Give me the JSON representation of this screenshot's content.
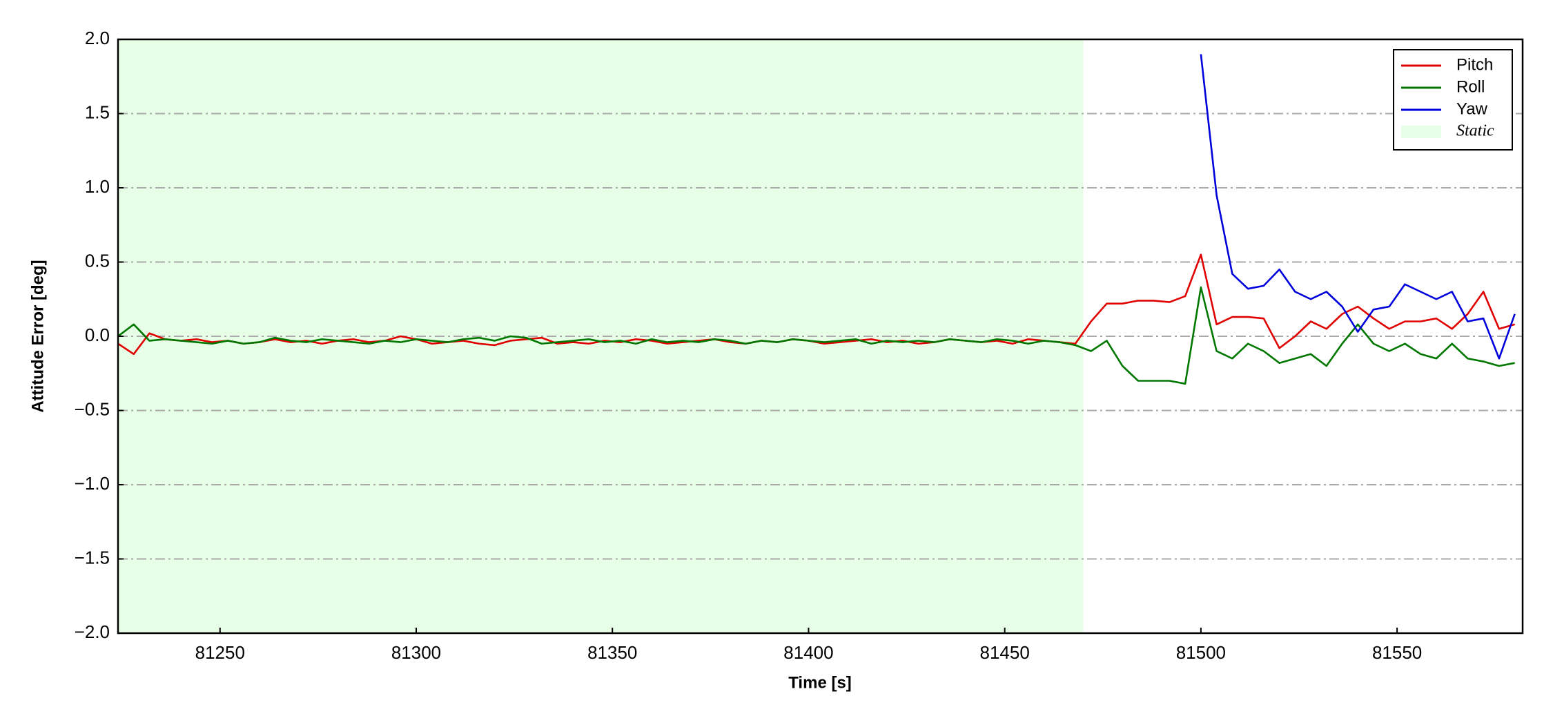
{
  "chart_data": {
    "type": "line",
    "xlabel": "Time [s]",
    "ylabel": "Attitude Error [deg]",
    "xlim": [
      81224,
      81582
    ],
    "ylim": [
      -2,
      2
    ],
    "xticks": [
      81250,
      81300,
      81350,
      81400,
      81450,
      81500,
      81550
    ],
    "yticks": [
      {
        "value": -2,
        "label": "−2.0"
      },
      {
        "value": -1.5,
        "label": "−1.5"
      },
      {
        "value": -1,
        "label": "−1.0"
      },
      {
        "value": -0.5,
        "label": "−0.5"
      },
      {
        "value": 0,
        "label": "0.0"
      },
      {
        "value": 0.5,
        "label": "0.5"
      },
      {
        "value": 1,
        "label": "1.0"
      },
      {
        "value": 1.5,
        "label": "1.5"
      },
      {
        "value": 2,
        "label": "2.0"
      }
    ],
    "grid": "y",
    "legend": "upper right",
    "static_region": {
      "label": "Static",
      "span": [
        81224,
        81470
      ],
      "color": "#e6ffe6"
    },
    "x": [
      81224,
      81228,
      81232,
      81236,
      81240,
      81244,
      81248,
      81252,
      81256,
      81260,
      81264,
      81268,
      81272,
      81276,
      81280,
      81284,
      81288,
      81292,
      81296,
      81300,
      81304,
      81308,
      81312,
      81316,
      81320,
      81324,
      81328,
      81332,
      81336,
      81340,
      81344,
      81348,
      81352,
      81356,
      81360,
      81364,
      81368,
      81372,
      81376,
      81380,
      81384,
      81388,
      81392,
      81396,
      81400,
      81404,
      81408,
      81412,
      81416,
      81420,
      81424,
      81428,
      81432,
      81436,
      81440,
      81444,
      81448,
      81452,
      81456,
      81460,
      81464,
      81468,
      81472,
      81476,
      81480,
      81484,
      81488,
      81492,
      81496,
      81500,
      81504,
      81508,
      81512,
      81516,
      81520,
      81524,
      81528,
      81532,
      81536,
      81540,
      81544,
      81548,
      81552,
      81556,
      81560,
      81564,
      81568,
      81572,
      81576,
      81580
    ],
    "series": [
      {
        "name": "Pitch",
        "color": "#e00000",
        "values": [
          -0.05,
          -0.12,
          0.02,
          -0.02,
          -0.03,
          -0.02,
          -0.04,
          -0.03,
          -0.05,
          -0.04,
          -0.02,
          -0.04,
          -0.03,
          -0.05,
          -0.03,
          -0.02,
          -0.04,
          -0.03,
          0.0,
          -0.02,
          -0.05,
          -0.04,
          -0.03,
          -0.05,
          -0.06,
          -0.03,
          -0.02,
          -0.01,
          -0.05,
          -0.04,
          -0.05,
          -0.03,
          -0.04,
          -0.02,
          -0.03,
          -0.05,
          -0.04,
          -0.03,
          -0.02,
          -0.04,
          -0.05,
          -0.03,
          -0.04,
          -0.02,
          -0.03,
          -0.05,
          -0.04,
          -0.03,
          -0.02,
          -0.04,
          -0.03,
          -0.05,
          -0.04,
          -0.02,
          -0.03,
          -0.04,
          -0.03,
          -0.05,
          -0.02,
          -0.03,
          -0.04,
          -0.05,
          0.1,
          0.22,
          0.22,
          0.24,
          0.24,
          0.23,
          0.27,
          0.55,
          0.08,
          0.13,
          0.13,
          0.12,
          -0.08,
          0.0,
          0.1,
          0.05,
          0.15,
          0.2,
          0.12,
          0.05,
          0.1,
          0.1,
          0.12,
          0.05,
          0.15,
          0.3,
          0.05,
          0.08
        ]
      },
      {
        "name": "Roll",
        "color": "#007800",
        "values": [
          0.0,
          0.08,
          -0.03,
          -0.02,
          -0.03,
          -0.04,
          -0.05,
          -0.03,
          -0.05,
          -0.04,
          -0.01,
          -0.03,
          -0.04,
          -0.02,
          -0.03,
          -0.04,
          -0.05,
          -0.03,
          -0.04,
          -0.02,
          -0.03,
          -0.04,
          -0.02,
          -0.01,
          -0.03,
          0.0,
          -0.01,
          -0.05,
          -0.04,
          -0.03,
          -0.02,
          -0.04,
          -0.03,
          -0.05,
          -0.02,
          -0.04,
          -0.03,
          -0.04,
          -0.02,
          -0.03,
          -0.05,
          -0.03,
          -0.04,
          -0.02,
          -0.03,
          -0.04,
          -0.03,
          -0.02,
          -0.05,
          -0.03,
          -0.04,
          -0.03,
          -0.04,
          -0.02,
          -0.03,
          -0.04,
          -0.02,
          -0.03,
          -0.05,
          -0.03,
          -0.04,
          -0.06,
          -0.1,
          -0.03,
          -0.2,
          -0.3,
          -0.3,
          -0.3,
          -0.32,
          0.33,
          -0.1,
          -0.15,
          -0.05,
          -0.1,
          -0.18,
          -0.15,
          -0.12,
          -0.2,
          -0.05,
          0.08,
          -0.05,
          -0.1,
          -0.05,
          -0.12,
          -0.15,
          -0.05,
          -0.15,
          -0.17,
          -0.2,
          -0.18
        ]
      },
      {
        "name": "Yaw",
        "color": "#0000dd",
        "values": [
          null,
          null,
          null,
          null,
          null,
          null,
          null,
          null,
          null,
          null,
          null,
          null,
          null,
          null,
          null,
          null,
          null,
          null,
          null,
          null,
          null,
          null,
          null,
          null,
          null,
          null,
          null,
          null,
          null,
          null,
          null,
          null,
          null,
          null,
          null,
          null,
          null,
          null,
          null,
          null,
          null,
          null,
          null,
          null,
          null,
          null,
          null,
          null,
          null,
          null,
          null,
          null,
          null,
          null,
          null,
          null,
          null,
          null,
          null,
          null,
          null,
          null,
          null,
          null,
          null,
          null,
          null,
          null,
          null,
          1.9,
          0.95,
          0.42,
          0.32,
          0.34,
          0.45,
          0.3,
          0.25,
          0.3,
          0.2,
          0.03,
          0.18,
          0.2,
          0.35,
          0.3,
          0.25,
          0.3,
          0.1,
          0.12,
          -0.15,
          0.15
        ]
      }
    ]
  }
}
